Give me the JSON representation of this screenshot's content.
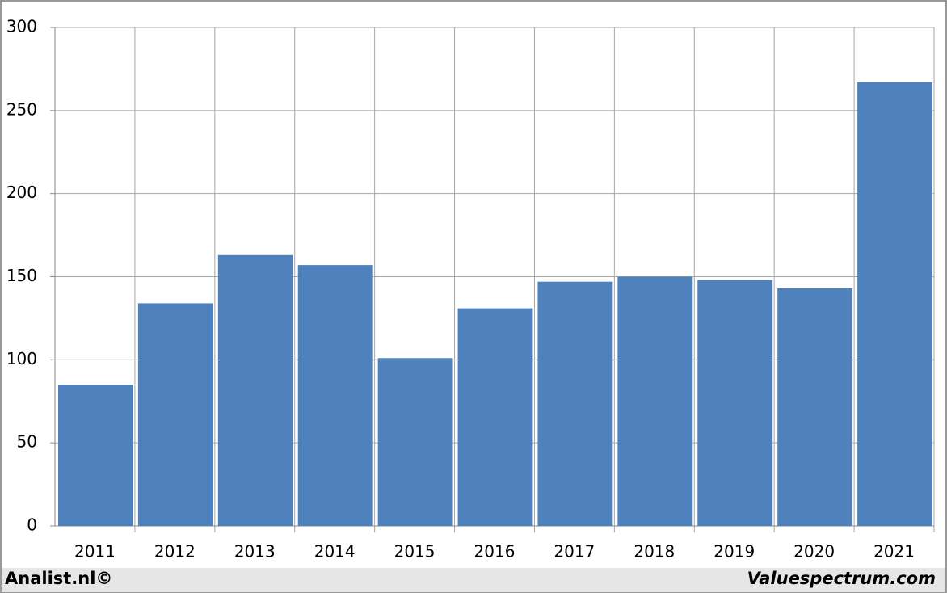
{
  "chart_data": {
    "type": "bar",
    "categories": [
      "2011",
      "2012",
      "2013",
      "2014",
      "2015",
      "2016",
      "2017",
      "2018",
      "2019",
      "2020",
      "2021"
    ],
    "values": [
      85,
      134,
      163,
      157,
      101,
      131,
      147,
      150,
      148,
      143,
      267
    ],
    "color": "#4f81bd",
    "ylim": [
      0,
      300
    ],
    "yticks": [
      0,
      50,
      100,
      150,
      200,
      250,
      300
    ],
    "grid": true,
    "annotations": [
      "Analist.nl©",
      "Valuespectrum.com"
    ]
  }
}
